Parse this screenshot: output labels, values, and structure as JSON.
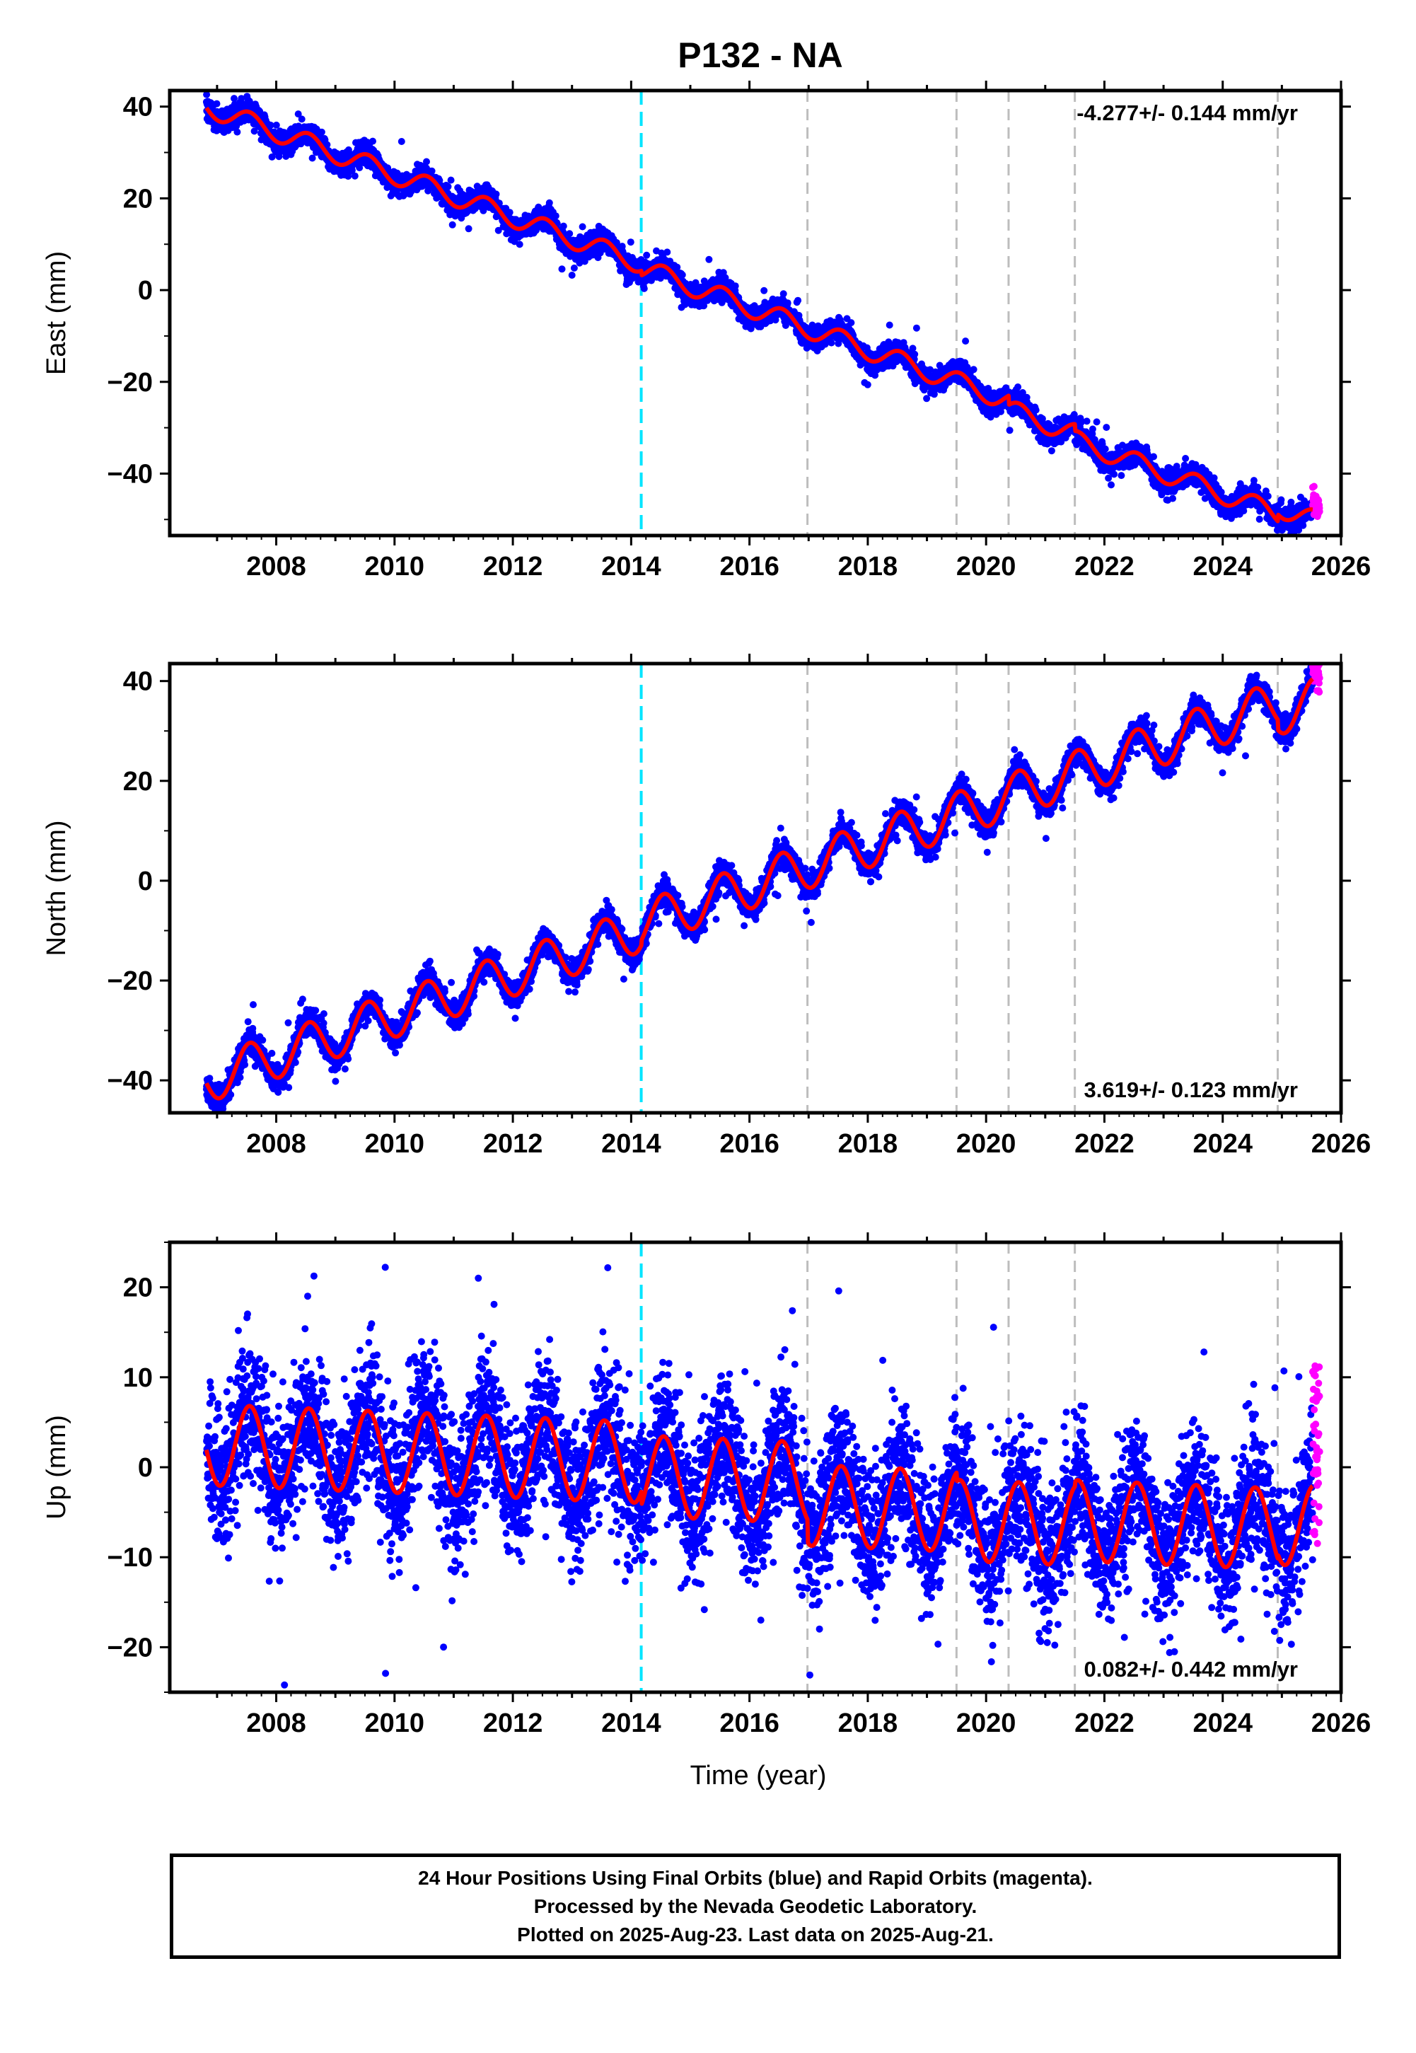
{
  "title": "P132 - NA",
  "xlabel": "Time (year)",
  "colors": {
    "final": "#0000ff",
    "rapid": "#ff00ff",
    "model": "#ff0000",
    "equipment_line": "#00e5ff",
    "break_line": "#bdbdbd",
    "frame": "#000000"
  },
  "footer": {
    "line1": "24 Hour Positions Using Final Orbits (blue) and Rapid Orbits (magenta).",
    "line2": "Processed by the Nevada Geodetic Laboratory.",
    "line3": "Plotted on 2025-Aug-23. Last data on 2025-Aug-21."
  },
  "chart_data": [
    {
      "type": "scatter",
      "component": "east",
      "ylabel": "East (mm)",
      "rate_label": "-4.277+/- 0.144 mm/yr",
      "rate_position": "top-right",
      "xlim": [
        2006.2,
        2026.0
      ],
      "ylim": [
        -53.5,
        43.5
      ],
      "x_ticks": [
        2008,
        2010,
        2012,
        2014,
        2016,
        2018,
        2020,
        2022,
        2024,
        2026
      ],
      "y_ticks": [
        -40,
        -20,
        0,
        20,
        40
      ],
      "data_start": 2006.82,
      "final_end": 2025.52,
      "rapid_range": [
        2025.52,
        2025.64
      ],
      "trend": {
        "rate_mm_per_yr": -4.277,
        "value_at_start": 40,
        "value_at_end": -47
      },
      "seasonal": {
        "annual_amplitude": 2.2,
        "scatter": 1.2
      },
      "equipment_change_lines": [
        2014.17
      ],
      "break_lines": [
        2016.98,
        2019.5,
        2020.38,
        2021.5,
        2024.93
      ],
      "offsets": [
        {
          "x": 2014.17,
          "dy": -1.0
        },
        {
          "x": 2020.38,
          "dy": -2.0
        },
        {
          "x": 2021.5,
          "dy": -1.5
        },
        {
          "x": 2024.93,
          "dy": 1.5
        }
      ],
      "grid": false
    },
    {
      "type": "scatter",
      "component": "north",
      "ylabel": "North (mm)",
      "rate_label": "3.619+/- 0.123 mm/yr",
      "rate_position": "bottom-right",
      "xlim": [
        2006.2,
        2026.0
      ],
      "ylim": [
        -46.5,
        43.5
      ],
      "x_ticks": [
        2008,
        2010,
        2012,
        2014,
        2016,
        2018,
        2020,
        2022,
        2024,
        2026
      ],
      "y_ticks": [
        -40,
        -20,
        0,
        20,
        40
      ],
      "data_start": 2006.82,
      "final_end": 2025.52,
      "rapid_range": [
        2025.52,
        2025.64
      ],
      "trend": {
        "rate_mm_per_yr": 3.619,
        "value_at_start": -40,
        "value_at_end": 37
      },
      "seasonal": {
        "annual_amplitude": 4.5,
        "scatter": 1.3
      },
      "equipment_change_lines": [
        2014.17
      ],
      "break_lines": [
        2016.98,
        2019.5,
        2020.38,
        2021.5,
        2024.93
      ],
      "offsets": [
        {
          "x": 2014.17,
          "dy": 1.0
        },
        {
          "x": 2024.93,
          "dy": -2.0
        }
      ],
      "grid": false
    },
    {
      "type": "scatter",
      "component": "up",
      "ylabel": "Up (mm)",
      "rate_label": "0.082+/- 0.442 mm/yr",
      "rate_position": "bottom-right",
      "xlim": [
        2006.2,
        2026.0
      ],
      "ylim": [
        -25,
        25
      ],
      "x_ticks": [
        2008,
        2010,
        2012,
        2014,
        2016,
        2018,
        2020,
        2022,
        2024,
        2026
      ],
      "y_ticks": [
        -20,
        -10,
        0,
        10,
        20
      ],
      "data_start": 2006.82,
      "final_end": 2025.52,
      "rapid_range": [
        2025.52,
        2025.64
      ],
      "trend": {
        "rate_mm_per_yr": 0.082,
        "value_at_start": 2.5,
        "value_at_end": -2.5
      },
      "seasonal": {
        "annual_amplitude": 4.5,
        "scatter": 3.8
      },
      "equipment_change_lines": [
        2014.17
      ],
      "break_lines": [
        2016.98,
        2019.5,
        2020.38,
        2021.5,
        2024.93
      ],
      "offsets": [
        {
          "x": 2014.17,
          "dy": -1.5
        },
        {
          "x": 2016.98,
          "dy": -2.5
        },
        {
          "x": 2019.5,
          "dy": -1.0
        },
        {
          "x": 2021.5,
          "dy": 0.5
        },
        {
          "x": 2024.93,
          "dy": 0.5
        }
      ],
      "grid": false
    }
  ]
}
